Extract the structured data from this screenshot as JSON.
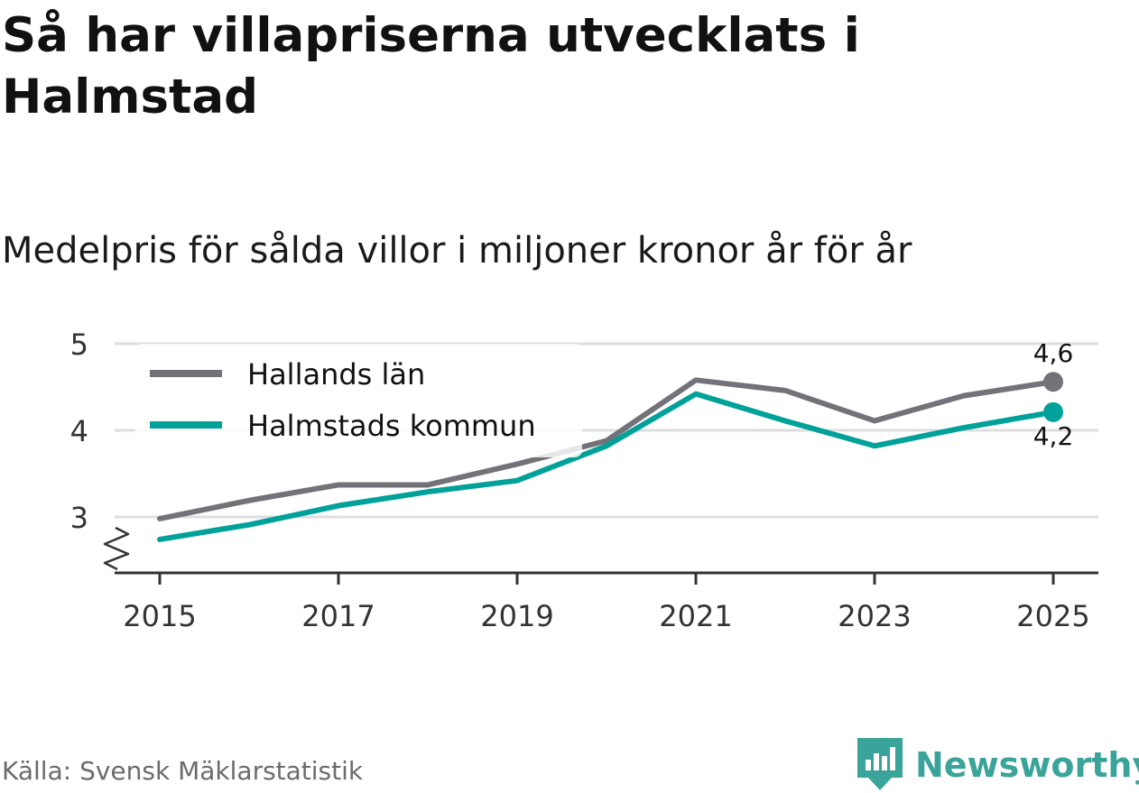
{
  "title": "Så har villapriserna utvecklats i Halmstad",
  "subtitle": "Medelpris för sålda villor i miljoner kronor år för år",
  "source": "Källa: Svensk Mäklarstatistik",
  "brand": {
    "name": "Newsworthy",
    "icon": "newsworthy-logo-icon",
    "color": "#3aa39a"
  },
  "chart_data": {
    "type": "line",
    "x": [
      2015,
      2016,
      2017,
      2018,
      2019,
      2020,
      2021,
      2022,
      2023,
      2024,
      2025
    ],
    "x_ticks": [
      "2015",
      "2017",
      "2019",
      "2021",
      "2023",
      "2025"
    ],
    "y_ticks": [
      "3",
      "4",
      "5"
    ],
    "ylim": [
      2.35,
      5
    ],
    "grid": true,
    "legend_position": "top-left",
    "series": [
      {
        "name": "Hallands län",
        "color": "#737279",
        "values": [
          2.98,
          3.19,
          3.37,
          3.37,
          3.61,
          3.88,
          4.58,
          4.46,
          4.11,
          4.4,
          4.56
        ],
        "end_label": "4,6"
      },
      {
        "name": "Halmstads kommun",
        "color": "#00a199",
        "values": [
          2.74,
          2.91,
          3.13,
          3.29,
          3.42,
          3.82,
          4.42,
          4.11,
          3.82,
          4.03,
          4.21
        ],
        "end_label": "4,2"
      }
    ]
  }
}
